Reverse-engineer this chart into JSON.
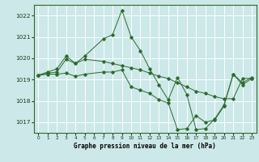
{
  "title": "Graphe pression niveau de la mer (hPa)",
  "background_color": "#cce8e8",
  "grid_color": "#ffffff",
  "line_color": "#2d6a2d",
  "xlim": [
    -0.5,
    23.5
  ],
  "ylim": [
    1016.5,
    1022.5
  ],
  "yticks": [
    1017,
    1018,
    1019,
    1020,
    1021,
    1022
  ],
  "xtick_labels": [
    "0",
    "1",
    "2",
    "3",
    "4",
    "5",
    "",
    "7",
    "8",
    "9",
    "10",
    "11",
    "12",
    "13",
    "14",
    "15",
    "16",
    "17",
    "18",
    "19",
    "20",
    "21",
    "22",
    "23"
  ],
  "series": [
    {
      "x": [
        0,
        1,
        2,
        3,
        4,
        5,
        7,
        8,
        9,
        10,
        11,
        12,
        13,
        14,
        15,
        16,
        17,
        18,
        19,
        20,
        21,
        22,
        23
      ],
      "y": [
        1019.2,
        1019.35,
        1019.5,
        1020.1,
        1019.75,
        1020.1,
        1020.9,
        1021.1,
        1022.25,
        1021.0,
        1020.35,
        1019.5,
        1018.75,
        1018.05,
        1019.1,
        1018.3,
        1016.65,
        1016.7,
        1017.15,
        1017.8,
        1019.25,
        1018.85,
        1019.1
      ]
    },
    {
      "x": [
        0,
        1,
        2,
        3,
        4,
        5,
        7,
        8,
        9,
        10,
        11,
        12,
        13,
        14,
        15,
        16,
        17,
        18,
        19,
        20,
        21,
        22,
        23
      ],
      "y": [
        1019.2,
        1019.3,
        1019.35,
        1019.95,
        1019.75,
        1019.95,
        1019.85,
        1019.75,
        1019.65,
        1019.55,
        1019.45,
        1019.3,
        1019.15,
        1019.05,
        1018.85,
        1018.65,
        1018.45,
        1018.35,
        1018.2,
        1018.1,
        1018.1,
        1019.05,
        1019.05
      ]
    },
    {
      "x": [
        0,
        1,
        2,
        3,
        4,
        5,
        7,
        8,
        9,
        10,
        11,
        12,
        13,
        14,
        15,
        16,
        17,
        18,
        19,
        20,
        21,
        22,
        23
      ],
      "y": [
        1019.2,
        1019.25,
        1019.25,
        1019.3,
        1019.15,
        1019.25,
        1019.35,
        1019.35,
        1019.45,
        1018.65,
        1018.5,
        1018.35,
        1018.05,
        1017.9,
        1016.65,
        1016.7,
        1017.3,
        1017.0,
        1017.1,
        1017.75,
        1019.25,
        1018.75,
        1019.05
      ]
    }
  ]
}
